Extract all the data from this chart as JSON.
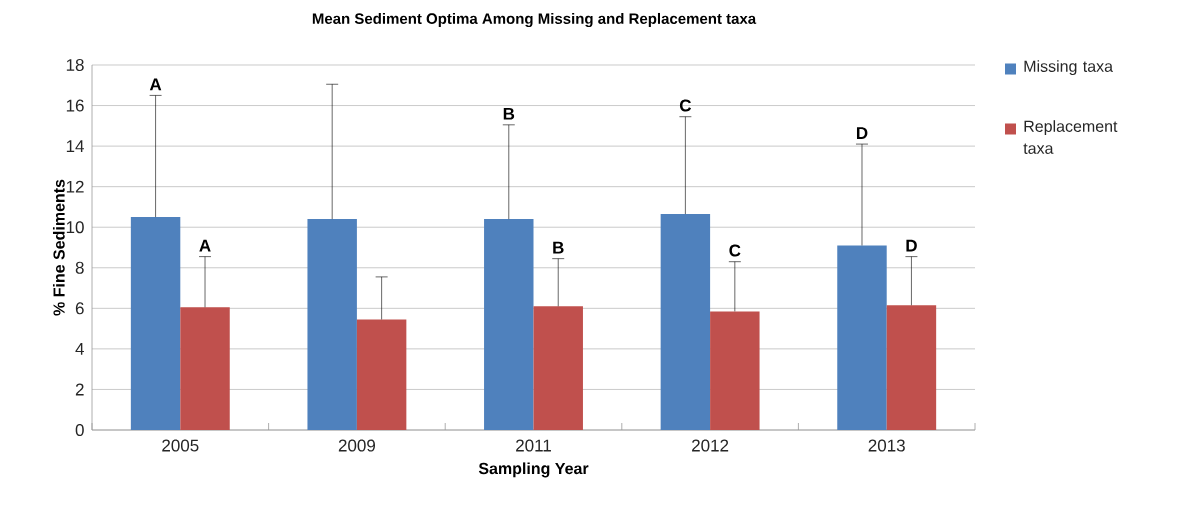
{
  "chart_data": {
    "type": "bar",
    "title": "Mean Sediment Optima Among Missing  and Replacement taxa",
    "xlabel": "Sampling Year",
    "ylabel": "% Fine Sediments",
    "categories": [
      "2005",
      "2009",
      "2011",
      "2012",
      "2013"
    ],
    "series": [
      {
        "name": "Missing taxa",
        "color": "#4f81bd",
        "values": [
          10.5,
          10.4,
          10.4,
          10.65,
          9.1
        ],
        "errors": [
          [
            10.5,
            16.5
          ],
          [
            10.4,
            17.05
          ],
          [
            10.4,
            15.05
          ],
          [
            10.65,
            15.45
          ],
          [
            9.1,
            14.1
          ]
        ]
      },
      {
        "name": "Replacement taxa",
        "color": "#c0504d",
        "values": [
          6.05,
          5.45,
          6.1,
          5.85,
          6.15
        ],
        "errors": [
          [
            6.05,
            8.55
          ],
          [
            5.45,
            7.55
          ],
          [
            6.1,
            8.45
          ],
          [
            5.85,
            8.3
          ],
          [
            6.15,
            8.55
          ]
        ]
      }
    ],
    "annotations": [
      "A",
      "A",
      "B",
      "B",
      "C",
      "C",
      "D",
      "D"
    ],
    "ylim": [
      0,
      18
    ],
    "yticks": [
      0,
      2,
      4,
      6,
      8,
      10,
      12,
      14,
      16,
      18
    ],
    "grid": "y",
    "legend": "right"
  }
}
